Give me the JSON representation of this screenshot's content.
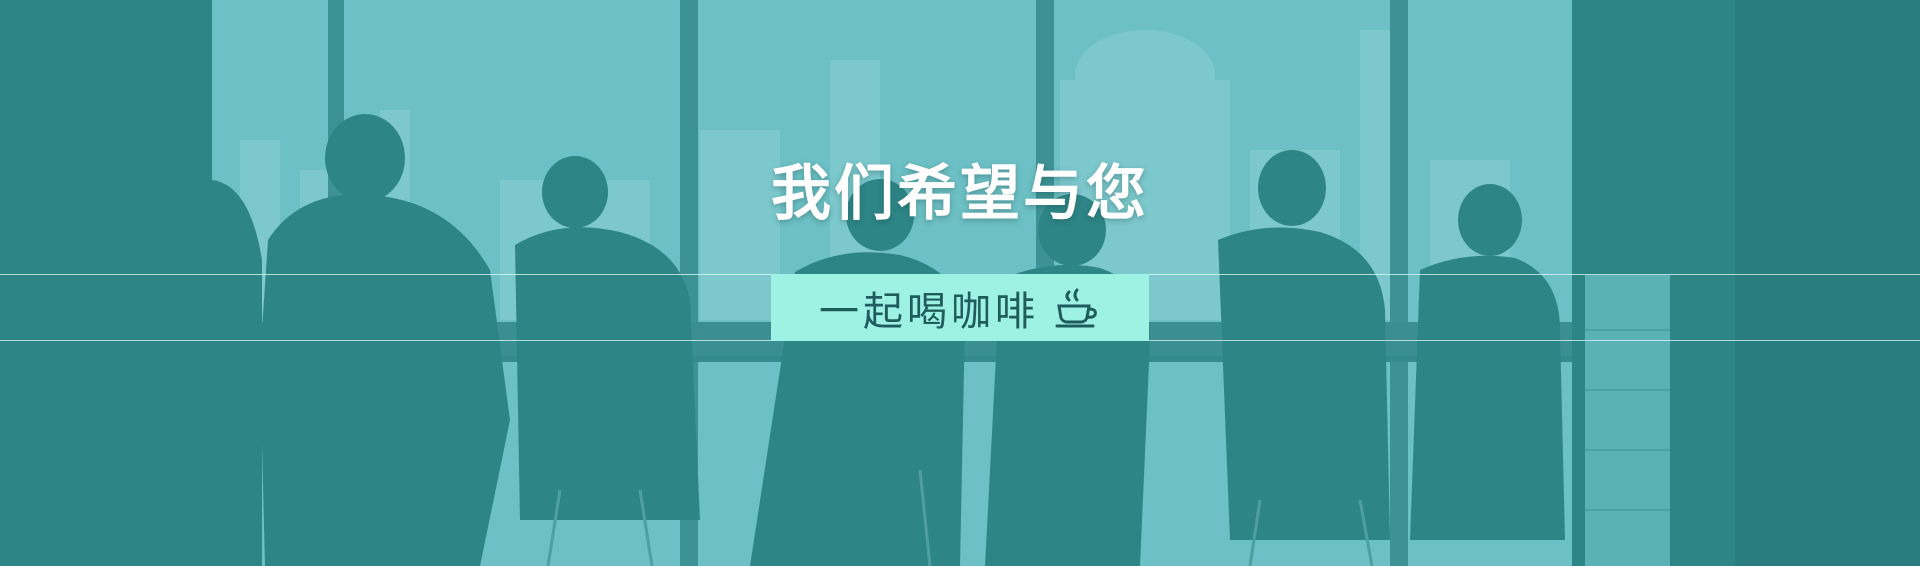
{
  "banner": {
    "headline": "我们希望与您",
    "subline": "一起喝咖啡",
    "colors": {
      "overlay": "#6dc0c5",
      "silhouette": "#2e8586",
      "pill": "#9df2e4",
      "pill_text": "#1f5c5b",
      "headline_text": "#ffffff"
    },
    "icons": {
      "subline_icon": "coffee-cup-icon"
    }
  }
}
